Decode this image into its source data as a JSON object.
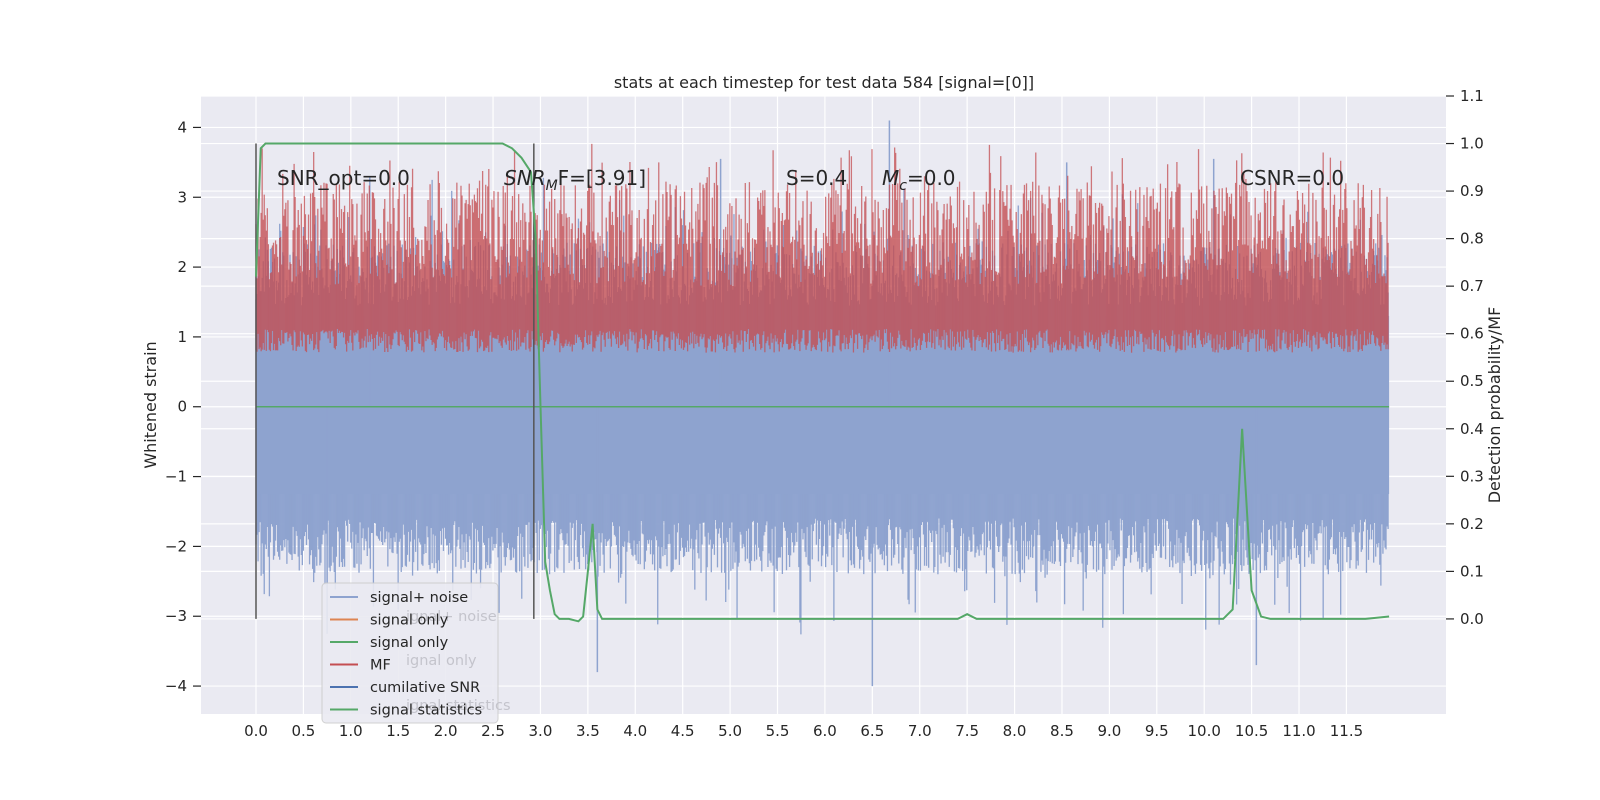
{
  "chart_data": {
    "type": "line",
    "title": "stats at each timestep for test data 584 [signal=[0]]",
    "ylabel": "Whitened strain",
    "ylabel_right": "Detection probability/MF",
    "xlabel": "",
    "xlim": [
      -0.58,
      12.55
    ],
    "ylim": [
      -4.4,
      4.45
    ],
    "ylim_right": [
      -0.2,
      1.1
    ],
    "x_ticks": [
      "0.0",
      "0.5",
      "1.0",
      "1.5",
      "2.0",
      "2.5",
      "3.0",
      "3.5",
      "4.0",
      "4.5",
      "5.0",
      "5.5",
      "6.0",
      "6.5",
      "7.0",
      "7.5",
      "8.0",
      "8.5",
      "9.0",
      "9.5",
      "10.0",
      "10.5",
      "11.0",
      "11.5"
    ],
    "y_ticks": [
      "4",
      "3",
      "2",
      "1",
      "0",
      "−1",
      "−2",
      "−3",
      "−4"
    ],
    "y_ticks_right": [
      "1.1",
      "1.0",
      "0.9",
      "0.8",
      "0.7",
      "0.6",
      "0.5",
      "0.4",
      "0.3",
      "0.2",
      "0.1",
      "0.0"
    ],
    "grid": true,
    "legend_position": "lower-left",
    "annotations": {
      "snr_opt": "SNR_opt=0.0",
      "snr_mf_main": "SNR",
      "snr_mf_sub": "M",
      "snr_mf_tail": "F=[3.91]",
      "s_value": "S=0.4",
      "mc_main": "M",
      "mc_sub": "c",
      "mc_tail": "=0.0",
      "csnr": "CSNR=0.0"
    },
    "series": [
      {
        "name": "signal+ noise",
        "color": "#8ea3cf",
        "description_level": "noise envelope",
        "y_range": [
          -4.0,
          4.1
        ]
      },
      {
        "name": "signal only",
        "color": "#dd8452"
      },
      {
        "name": "signal only",
        "color": "#55a868",
        "values_flat": 0.0
      },
      {
        "name": "MF",
        "color": "#c44e52",
        "y_range": [
          0.55,
          0.98
        ]
      },
      {
        "name": "cumilative SNR",
        "color": "#4c72b0"
      },
      {
        "name": "signal statistics",
        "color": "#55a868",
        "x": [
          0.0,
          0.05,
          0.1,
          0.2,
          0.5,
          1.0,
          1.5,
          2.0,
          2.5,
          2.6,
          2.7,
          2.8,
          2.9,
          2.95,
          3.0,
          3.05,
          3.1,
          3.15,
          3.2,
          3.3,
          3.4,
          3.45,
          3.5,
          3.55,
          3.6,
          3.65,
          3.7,
          4.0,
          5.0,
          6.0,
          7.0,
          7.4,
          7.5,
          7.6,
          8.0,
          9.0,
          10.0,
          10.2,
          10.3,
          10.4,
          10.5,
          10.6,
          10.7,
          11.0,
          11.5,
          11.7,
          11.95
        ],
        "y": [
          0.72,
          0.99,
          1.0,
          1.0,
          1.0,
          1.0,
          1.0,
          1.0,
          1.0,
          1.0,
          0.99,
          0.97,
          0.94,
          0.8,
          0.45,
          0.12,
          0.06,
          0.01,
          0.0,
          0.0,
          -0.005,
          0.005,
          0.1,
          0.2,
          0.02,
          0.0,
          0.0,
          0.0,
          0.0,
          0.0,
          0.0,
          0.0,
          0.01,
          0.0,
          0.0,
          0.0,
          0.0,
          0.0,
          0.02,
          0.4,
          0.06,
          0.005,
          0.0,
          0.0,
          0.0,
          0.0,
          0.005
        ]
      },
      {
        "name": "signal noise",
        "color": "#cccccc"
      },
      {
        "name": "signal only",
        "color": "#cccccc"
      },
      {
        "name": "signal statistics",
        "color": "#cccccc"
      }
    ],
    "vertical_markers_x": [
      0.0,
      2.93
    ],
    "legend_entries": [
      {
        "label": "signal+ noise",
        "color": "#8ea3cf"
      },
      {
        "label": "signal only",
        "color": "#dd8452"
      },
      {
        "label": "signal only",
        "color": "#55a868"
      },
      {
        "label": "MF",
        "color": "#c44e52"
      },
      {
        "label": "cumilative SNR",
        "color": "#4c72b0"
      },
      {
        "label": "signal statistics",
        "color": "#55a868"
      }
    ],
    "ghost_legend_text": [
      "ignal+ noise",
      "ignal only",
      "ignal statistics"
    ]
  }
}
